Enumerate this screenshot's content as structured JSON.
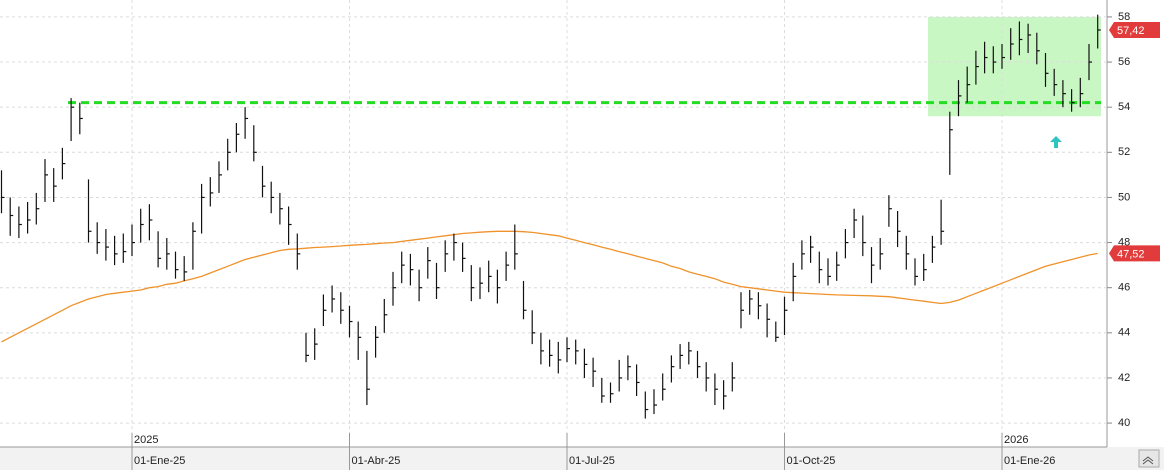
{
  "chart_data": {
    "type": "ohlc",
    "categories": [
      null,
      null,
      null,
      null,
      null,
      null,
      null,
      null,
      null,
      null,
      null,
      null,
      null,
      null,
      null,
      "01-Ene-25",
      null,
      null,
      null,
      null,
      null,
      null,
      null,
      null,
      null,
      null,
      null,
      null,
      null,
      null,
      null,
      null,
      null,
      null,
      null,
      null,
      null,
      null,
      null,
      null,
      "01-Abr-25",
      null,
      null,
      null,
      null,
      null,
      null,
      null,
      null,
      null,
      null,
      null,
      null,
      null,
      null,
      null,
      null,
      null,
      null,
      null,
      null,
      null,
      null,
      null,
      null,
      "01-Jul-25",
      null,
      null,
      null,
      null,
      null,
      null,
      null,
      null,
      null,
      null,
      null,
      null,
      null,
      null,
      null,
      null,
      null,
      null,
      null,
      null,
      null,
      null,
      null,
      null,
      "01-Oct-25",
      null,
      null,
      null,
      null,
      null,
      null,
      null,
      null,
      null,
      null,
      null,
      null,
      null,
      null,
      null,
      null,
      null,
      null,
      null,
      null,
      null,
      null,
      null,
      null,
      "01-Ene-26",
      null,
      null,
      null,
      null,
      null,
      null,
      null,
      null,
      null,
      null,
      null
    ],
    "years": [
      "2025",
      "2026"
    ],
    "high": [
      51.2,
      50.0,
      49.6,
      49.8,
      50.2,
      51.7,
      51.3,
      52.2,
      54.4,
      54.2,
      50.8,
      48.9,
      48.6,
      48.3,
      48.4,
      48.8,
      49.5,
      49.7,
      48.5,
      48.2,
      47.6,
      47.4,
      48.9,
      50.6,
      50.9,
      51.6,
      52.6,
      53.3,
      54.0,
      53.2,
      51.4,
      50.7,
      50.2,
      49.6,
      48.4,
      44.0,
      44.2,
      45.7,
      46.1,
      45.8,
      45.2,
      44.5,
      43.2,
      44.3,
      45.5,
      46.7,
      47.6,
      47.5,
      46.8,
      47.8,
      47.1,
      48.1,
      48.4,
      48.0,
      47.0,
      46.9,
      47.2,
      46.8,
      47.6,
      48.8,
      46.3,
      45.0,
      44.0,
      43.7,
      43.6,
      43.8,
      43.7,
      43.3,
      42.9,
      42.0,
      41.8,
      42.8,
      43.0,
      42.6,
      41.4,
      41.5,
      42.2,
      43.0,
      43.5,
      43.6,
      43.2,
      42.7,
      42.2,
      41.9,
      42.7,
      45.8,
      45.9,
      45.8,
      45.3,
      44.5,
      45.6,
      47.1,
      48.1,
      48.3,
      47.6,
      47.3,
      47.6,
      48.6,
      49.5,
      49.2,
      47.8,
      48.2,
      50.1,
      49.4,
      48.3,
      47.3,
      47.5,
      48.3,
      49.9,
      53.8,
      55.2,
      55.8,
      56.5,
      56.9,
      56.7,
      56.8,
      57.5,
      57.8,
      57.7,
      57.3,
      56.4,
      55.7,
      55.2,
      54.8,
      55.3,
      56.8,
      58.1
    ],
    "low": [
      49.3,
      48.3,
      48.2,
      48.4,
      48.8,
      49.8,
      49.8,
      50.8,
      52.5,
      52.8,
      48.0,
      47.5,
      47.2,
      47.0,
      47.1,
      47.4,
      48.0,
      48.1,
      46.9,
      46.8,
      46.4,
      46.3,
      46.8,
      48.4,
      49.6,
      50.2,
      51.2,
      52.0,
      52.6,
      51.6,
      50.0,
      49.3,
      48.8,
      47.9,
      46.8,
      42.7,
      42.8,
      44.3,
      44.9,
      44.4,
      43.8,
      42.8,
      40.8,
      42.9,
      44.0,
      45.2,
      46.2,
      46.1,
      45.4,
      46.4,
      45.5,
      46.7,
      47.2,
      46.7,
      45.4,
      45.5,
      45.8,
      45.3,
      46.3,
      46.8,
      44.6,
      43.5,
      42.6,
      42.5,
      42.2,
      42.7,
      42.6,
      42.0,
      41.6,
      40.9,
      40.9,
      41.4,
      41.9,
      41.2,
      40.2,
      40.4,
      41.0,
      41.8,
      42.4,
      42.6,
      42.0,
      41.4,
      40.8,
      40.6,
      41.4,
      44.2,
      44.8,
      44.6,
      43.8,
      43.6,
      43.9,
      45.4,
      46.8,
      47.1,
      46.2,
      46.1,
      46.3,
      47.3,
      48.2,
      47.4,
      46.2,
      46.8,
      48.7,
      47.8,
      46.8,
      46.1,
      46.3,
      47.1,
      47.9,
      51.0,
      53.6,
      54.2,
      55.0,
      55.5,
      55.5,
      55.7,
      56.1,
      56.3,
      56.4,
      55.9,
      54.9,
      54.5,
      54.0,
      53.8,
      54.0,
      55.2,
      56.6
    ],
    "close": [
      50.0,
      49.2,
      48.8,
      49.0,
      49.5,
      51.0,
      50.5,
      51.5,
      54.0,
      53.5,
      48.5,
      48.0,
      47.8,
      47.5,
      47.6,
      48.0,
      48.8,
      49.0,
      47.3,
      47.5,
      46.8,
      46.7,
      48.5,
      50.0,
      50.2,
      51.0,
      52.0,
      52.8,
      53.5,
      52.0,
      50.5,
      50.0,
      49.5,
      48.8,
      47.5,
      43.0,
      43.5,
      45.0,
      45.5,
      45.0,
      44.5,
      43.8,
      41.5,
      43.8,
      44.8,
      46.0,
      47.0,
      46.8,
      46.0,
      47.2,
      46.0,
      47.5,
      48.0,
      47.3,
      46.0,
      46.2,
      46.5,
      46.0,
      47.0,
      47.5,
      45.0,
      44.0,
      43.2,
      43.0,
      42.8,
      43.3,
      43.2,
      42.6,
      42.3,
      41.2,
      41.3,
      42.0,
      42.5,
      41.8,
      40.6,
      40.8,
      41.5,
      42.5,
      43.0,
      43.2,
      42.5,
      42.0,
      41.5,
      41.2,
      42.0,
      45.0,
      45.5,
      45.2,
      44.6,
      43.8,
      45.0,
      46.5,
      47.5,
      47.8,
      46.8,
      46.5,
      47.0,
      48.0,
      49.0,
      48.0,
      47.0,
      47.5,
      49.5,
      48.5,
      47.5,
      46.5,
      46.8,
      47.8,
      48.5,
      53.0,
      54.5,
      55.0,
      55.8,
      56.2,
      56.0,
      56.2,
      56.8,
      57.0,
      57.2,
      56.5,
      55.5,
      55.0,
      54.6,
      54.2,
      54.6,
      56.0,
      57.42
    ],
    "color": "#111111",
    "ma": {
      "color": "#f0922b",
      "values": [
        43.6,
        43.8,
        44.0,
        44.2,
        44.4,
        44.6,
        44.8,
        45.0,
        45.2,
        45.35,
        45.5,
        45.6,
        45.7,
        45.75,
        45.8,
        45.85,
        45.9,
        46.0,
        46.05,
        46.15,
        46.2,
        46.3,
        46.4,
        46.5,
        46.65,
        46.8,
        46.95,
        47.1,
        47.25,
        47.35,
        47.45,
        47.55,
        47.65,
        47.7,
        47.72,
        47.75,
        47.78,
        47.8,
        47.82,
        47.85,
        47.88,
        47.9,
        47.92,
        47.95,
        47.98,
        48.0,
        48.05,
        48.1,
        48.15,
        48.2,
        48.25,
        48.3,
        48.35,
        48.4,
        48.43,
        48.46,
        48.48,
        48.5,
        48.5,
        48.5,
        48.48,
        48.45,
        48.4,
        48.35,
        48.3,
        48.2,
        48.1,
        48.0,
        47.9,
        47.8,
        47.7,
        47.6,
        47.5,
        47.4,
        47.3,
        47.2,
        47.1,
        46.95,
        46.85,
        46.7,
        46.6,
        46.5,
        46.4,
        46.25,
        46.15,
        46.05,
        46.0,
        45.95,
        45.9,
        45.85,
        45.8,
        45.78,
        45.76,
        45.74,
        45.72,
        45.7,
        45.68,
        45.67,
        45.66,
        45.65,
        45.64,
        45.62,
        45.6,
        45.55,
        45.5,
        45.45,
        45.4,
        45.35,
        45.3,
        45.35,
        45.45,
        45.6,
        45.75,
        45.9,
        46.05,
        46.2,
        46.35,
        46.5,
        46.65,
        46.8,
        46.95,
        47.05,
        47.15,
        47.25,
        47.35,
        47.45,
        47.52
      ]
    },
    "last_labels": [
      {
        "value": 57.42,
        "label": "57,42"
      },
      {
        "value": 47.52,
        "label": "47,52"
      }
    ],
    "last_label_color": "#e23b3b",
    "level": {
      "value": 54.2,
      "color": "#22dd22"
    },
    "highlight": {
      "ylim": [
        53.6,
        58.0
      ],
      "color": "#c9f7c3"
    },
    "ylim": [
      38.94,
      58.75
    ],
    "yticks": [
      40,
      42,
      44,
      46,
      48,
      50,
      52,
      54,
      56,
      58
    ],
    "grid": true
  }
}
